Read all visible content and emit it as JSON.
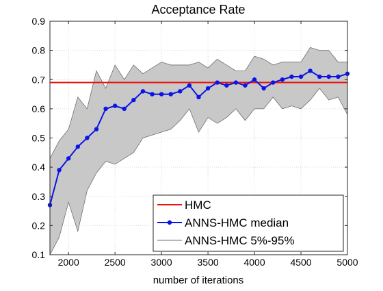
{
  "chart_data": {
    "type": "line",
    "title": "Acceptance Rate",
    "xlabel": "number of iterations",
    "ylabel": "",
    "xlim": [
      1800,
      5000
    ],
    "ylim": [
      0.1,
      0.9
    ],
    "xticks": [
      2000,
      2500,
      3000,
      3500,
      4000,
      4500,
      5000
    ],
    "yticks": [
      0.1,
      0.2,
      0.3,
      0.4,
      0.5,
      0.6,
      0.7,
      0.8,
      0.9
    ],
    "grid": true,
    "legend_position": "bottom-right",
    "series": [
      {
        "name": "HMC",
        "kind": "constant",
        "color": "#e8140f",
        "value": 0.69
      },
      {
        "name": "ANNS-HMC median",
        "kind": "line-markers",
        "color": "#0a14e6",
        "x": [
          1800,
          1900,
          2000,
          2100,
          2200,
          2300,
          2400,
          2500,
          2600,
          2700,
          2800,
          2900,
          3000,
          3100,
          3200,
          3300,
          3400,
          3500,
          3600,
          3700,
          3800,
          3900,
          4000,
          4100,
          4200,
          4300,
          4400,
          4500,
          4600,
          4700,
          4800,
          4900,
          5000
        ],
        "y": [
          0.27,
          0.39,
          0.43,
          0.47,
          0.5,
          0.53,
          0.6,
          0.61,
          0.6,
          0.63,
          0.66,
          0.65,
          0.65,
          0.65,
          0.66,
          0.68,
          0.64,
          0.67,
          0.69,
          0.68,
          0.69,
          0.68,
          0.7,
          0.67,
          0.69,
          0.7,
          0.71,
          0.71,
          0.73,
          0.71,
          0.71,
          0.71,
          0.72
        ]
      },
      {
        "name": "ANNS-HMC 5%-95%",
        "kind": "band",
        "color": "#c8c8c8",
        "edge_color": "#6e6e6e",
        "x": [
          1800,
          1900,
          2000,
          2100,
          2200,
          2300,
          2400,
          2500,
          2600,
          2700,
          2800,
          2900,
          3000,
          3100,
          3200,
          3300,
          3400,
          3500,
          3600,
          3700,
          3800,
          3900,
          4000,
          4100,
          4200,
          4300,
          4400,
          4500,
          4600,
          4700,
          4800,
          4900,
          5000
        ],
        "lower": [
          0.1,
          0.16,
          0.28,
          0.18,
          0.32,
          0.38,
          0.42,
          0.41,
          0.43,
          0.45,
          0.5,
          0.51,
          0.52,
          0.53,
          0.56,
          0.6,
          0.52,
          0.57,
          0.55,
          0.57,
          0.6,
          0.56,
          0.6,
          0.6,
          0.64,
          0.6,
          0.61,
          0.6,
          0.63,
          0.67,
          0.63,
          0.64,
          0.58
        ],
        "upper": [
          0.43,
          0.49,
          0.53,
          0.64,
          0.6,
          0.73,
          0.67,
          0.75,
          0.7,
          0.75,
          0.72,
          0.74,
          0.76,
          0.75,
          0.75,
          0.75,
          0.76,
          0.74,
          0.77,
          0.75,
          0.73,
          0.73,
          0.78,
          0.77,
          0.75,
          0.76,
          0.76,
          0.76,
          0.81,
          0.8,
          0.8,
          0.76,
          0.76
        ]
      }
    ]
  }
}
